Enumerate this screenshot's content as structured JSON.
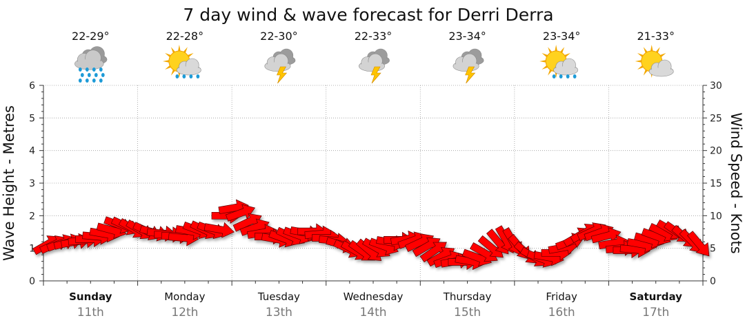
{
  "chart_data": {
    "type": "line",
    "title": "7 day wind & wave forecast for Derri Derra",
    "ylabel": "Wave Height - Metres",
    "y2label": "Wind Speed - Knots",
    "ylim": [
      0,
      6
    ],
    "y2lim": [
      0,
      30
    ],
    "yticks": [
      "0",
      "1",
      "2",
      "3",
      "4",
      "5",
      "6"
    ],
    "y2ticks": [
      "0",
      "5",
      "10",
      "15",
      "20",
      "25",
      "30"
    ],
    "grid": true,
    "days": [
      {
        "name": "Sunday",
        "date": "11th",
        "weekend": true,
        "temp": "22-29°",
        "icon": "heavy-rain-icon"
      },
      {
        "name": "Monday",
        "date": "12th",
        "weekend": false,
        "temp": "22-28°",
        "icon": "sun-cloud-rain-icon"
      },
      {
        "name": "Tuesday",
        "date": "13th",
        "weekend": false,
        "temp": "22-30°",
        "icon": "thunderstorm-icon"
      },
      {
        "name": "Wednesday",
        "date": "14th",
        "weekend": false,
        "temp": "22-33°",
        "icon": "thunderstorm-icon"
      },
      {
        "name": "Thursday",
        "date": "15th",
        "weekend": false,
        "temp": "23-34°",
        "icon": "thunderstorm-icon"
      },
      {
        "name": "Friday",
        "date": "16th",
        "weekend": false,
        "temp": "23-34°",
        "icon": "sun-cloud-rain-icon"
      },
      {
        "name": "Saturday",
        "date": "17th",
        "weekend": true,
        "temp": "21-33°",
        "icon": "sun-cloud-icon"
      }
    ],
    "series": [
      {
        "name": "Wind Speed",
        "unit": "knots",
        "color": "#ff0000",
        "direction_degrees": [
          60,
          65,
          70,
          75,
          80,
          85,
          90,
          95,
          100,
          105,
          110,
          115,
          120,
          120,
          115,
          105,
          95,
          90,
          90,
          95,
          100,
          110,
          115,
          110,
          100,
          90,
          80,
          70,
          65,
          70,
          80,
          90,
          100,
          110,
          115,
          110,
          100,
          90,
          85,
          90,
          95,
          105,
          115,
          120,
          125,
          130,
          120,
          110,
          100,
          90,
          80,
          70,
          65,
          60,
          55,
          60,
          70,
          80,
          90,
          100,
          110,
          120,
          130,
          140,
          150,
          150,
          140,
          130,
          120,
          110,
          100,
          90,
          80,
          70,
          60,
          60,
          65,
          70,
          75,
          80,
          85,
          90,
          95,
          100,
          105,
          110,
          115,
          120,
          125,
          130,
          135,
          140
        ],
        "values": [
          5.6,
          5.6,
          5.8,
          5.9,
          6.0,
          6.2,
          6.4,
          6.8,
          7.2,
          7.8,
          8.6,
          8.4,
          8.0,
          7.8,
          7.6,
          7.4,
          7.3,
          7.1,
          6.9,
          6.6,
          7.6,
          7.8,
          7.8,
          7.8,
          7.9,
          10.0,
          11.2,
          10.4,
          9.0,
          8.2,
          7.4,
          6.8,
          6.4,
          6.5,
          6.8,
          7.0,
          7.4,
          7.6,
          7.2,
          6.6,
          6.2,
          5.6,
          4.9,
          4.6,
          4.5,
          4.6,
          5.0,
          5.3,
          5.9,
          6.3,
          6.4,
          6.2,
          5.9,
          5.3,
          4.6,
          3.8,
          3.3,
          3.0,
          2.9,
          3.0,
          3.6,
          4.3,
          5.1,
          5.9,
          6.3,
          6.0,
          5.1,
          4.2,
          3.6,
          3.4,
          3.6,
          4.3,
          5.1,
          6.0,
          6.8,
          7.4,
          7.6,
          7.4,
          6.9,
          5.8,
          5.0,
          4.7,
          4.8,
          5.6,
          6.3,
          6.8,
          7.4,
          7.8,
          7.4,
          6.7,
          6.0,
          5.6
        ]
      }
    ]
  }
}
